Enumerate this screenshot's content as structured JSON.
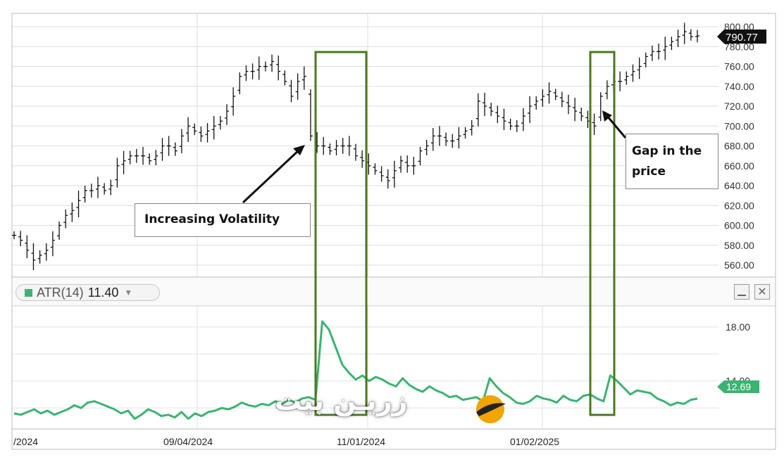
{
  "price_panel": {
    "y_ticks": [
      "800.00",
      "780.00",
      "760.00",
      "740.00",
      "720.00",
      "700.00",
      "680.00",
      "660.00",
      "640.00",
      "620.00",
      "600.00",
      "580.00",
      "560.00"
    ],
    "last_price": "790.77",
    "last_price_bg": "#111111"
  },
  "atr_panel": {
    "legend_name": "ATR(14)",
    "legend_value": "11.40",
    "y_ticks": [
      "18.00",
      "14.00"
    ],
    "last_value": "12.69",
    "line_color": "#3cb371",
    "min_icon": "minimize-icon",
    "close_icon": "close-icon"
  },
  "x_axis": {
    "labels": [
      "/2024",
      "09/04/2024",
      "11/01/2024",
      "01/02/2025"
    ]
  },
  "annotations": {
    "volatility_label": "Increasing Volatility",
    "gap_line1": "Gap in the",
    "gap_line2": "price",
    "box_color": "#4a7a1e"
  },
  "watermark": {
    "text": "زریـن بیت"
  },
  "chart_data": [
    {
      "type": "ohlc",
      "y_axis": {
        "min": 560,
        "max": 800,
        "ticks": [
          800,
          780,
          760,
          740,
          720,
          700,
          680,
          660,
          640,
          620,
          600,
          580,
          560
        ]
      },
      "grid": true,
      "close": [
        590,
        585,
        575,
        565,
        570,
        575,
        585,
        600,
        610,
        615,
        625,
        635,
        635,
        640,
        635,
        640,
        660,
        665,
        670,
        670,
        670,
        665,
        670,
        680,
        680,
        675,
        690,
        700,
        695,
        690,
        695,
        700,
        705,
        715,
        730,
        750,
        755,
        755,
        760,
        760,
        765,
        755,
        745,
        730,
        745,
        750,
        690,
        680,
        680,
        675,
        680,
        680,
        680,
        670,
        665,
        660,
        655,
        650,
        645,
        655,
        665,
        660,
        660,
        675,
        680,
        690,
        690,
        685,
        685,
        690,
        695,
        700,
        725,
        720,
        715,
        710,
        705,
        700,
        700,
        710,
        720,
        725,
        730,
        735,
        730,
        725,
        720,
        715,
        710,
        705,
        700,
        730,
        740,
        745,
        745,
        750,
        755,
        760,
        770,
        775,
        775,
        780,
        785,
        790,
        795,
        790,
        790.77
      ],
      "last_price": 790.77
    },
    {
      "type": "line",
      "series": [
        {
          "name": "ATR(14)",
          "values": [
            11.6,
            11.5,
            11.7,
            11.9,
            11.6,
            11.8,
            11.5,
            11.7,
            11.9,
            12.2,
            12.0,
            12.4,
            12.5,
            12.3,
            12.1,
            11.9,
            11.6,
            11.8,
            11.2,
            11.5,
            11.9,
            11.7,
            11.4,
            11.5,
            11.3,
            11.7,
            11.2,
            11.6,
            11.4,
            11.7,
            11.8,
            12.0,
            11.9,
            12.1,
            12.4,
            12.2,
            12.1,
            12.3,
            12.2,
            12.5,
            12.3,
            12.6,
            12.4,
            12.7,
            12.8,
            12.6,
            18.4,
            17.8,
            16.5,
            15.2,
            14.6,
            14.1,
            14.4,
            14.0,
            14.3,
            14.1,
            13.8,
            13.6,
            14.2,
            13.7,
            13.4,
            13.2,
            13.6,
            13.3,
            13.1,
            12.8,
            12.9,
            12.6,
            12.7,
            12.8,
            12.5,
            14.2,
            13.6,
            13.1,
            12.8,
            12.4,
            12.3,
            12.5,
            12.9,
            12.7,
            12.6,
            12.4,
            12.9,
            12.6,
            12.5,
            12.9,
            13.0,
            12.7,
            12.5,
            14.4,
            14.0,
            13.5,
            13.0,
            13.3,
            13.2,
            13.1,
            12.7,
            12.5,
            12.2,
            12.4,
            12.3,
            12.6,
            12.69
          ]
        }
      ],
      "y_axis": {
        "min": 10.5,
        "max": 19.5,
        "ticks": [
          18,
          14
        ]
      },
      "last_value": 12.69,
      "current_value": 11.4
    }
  ]
}
